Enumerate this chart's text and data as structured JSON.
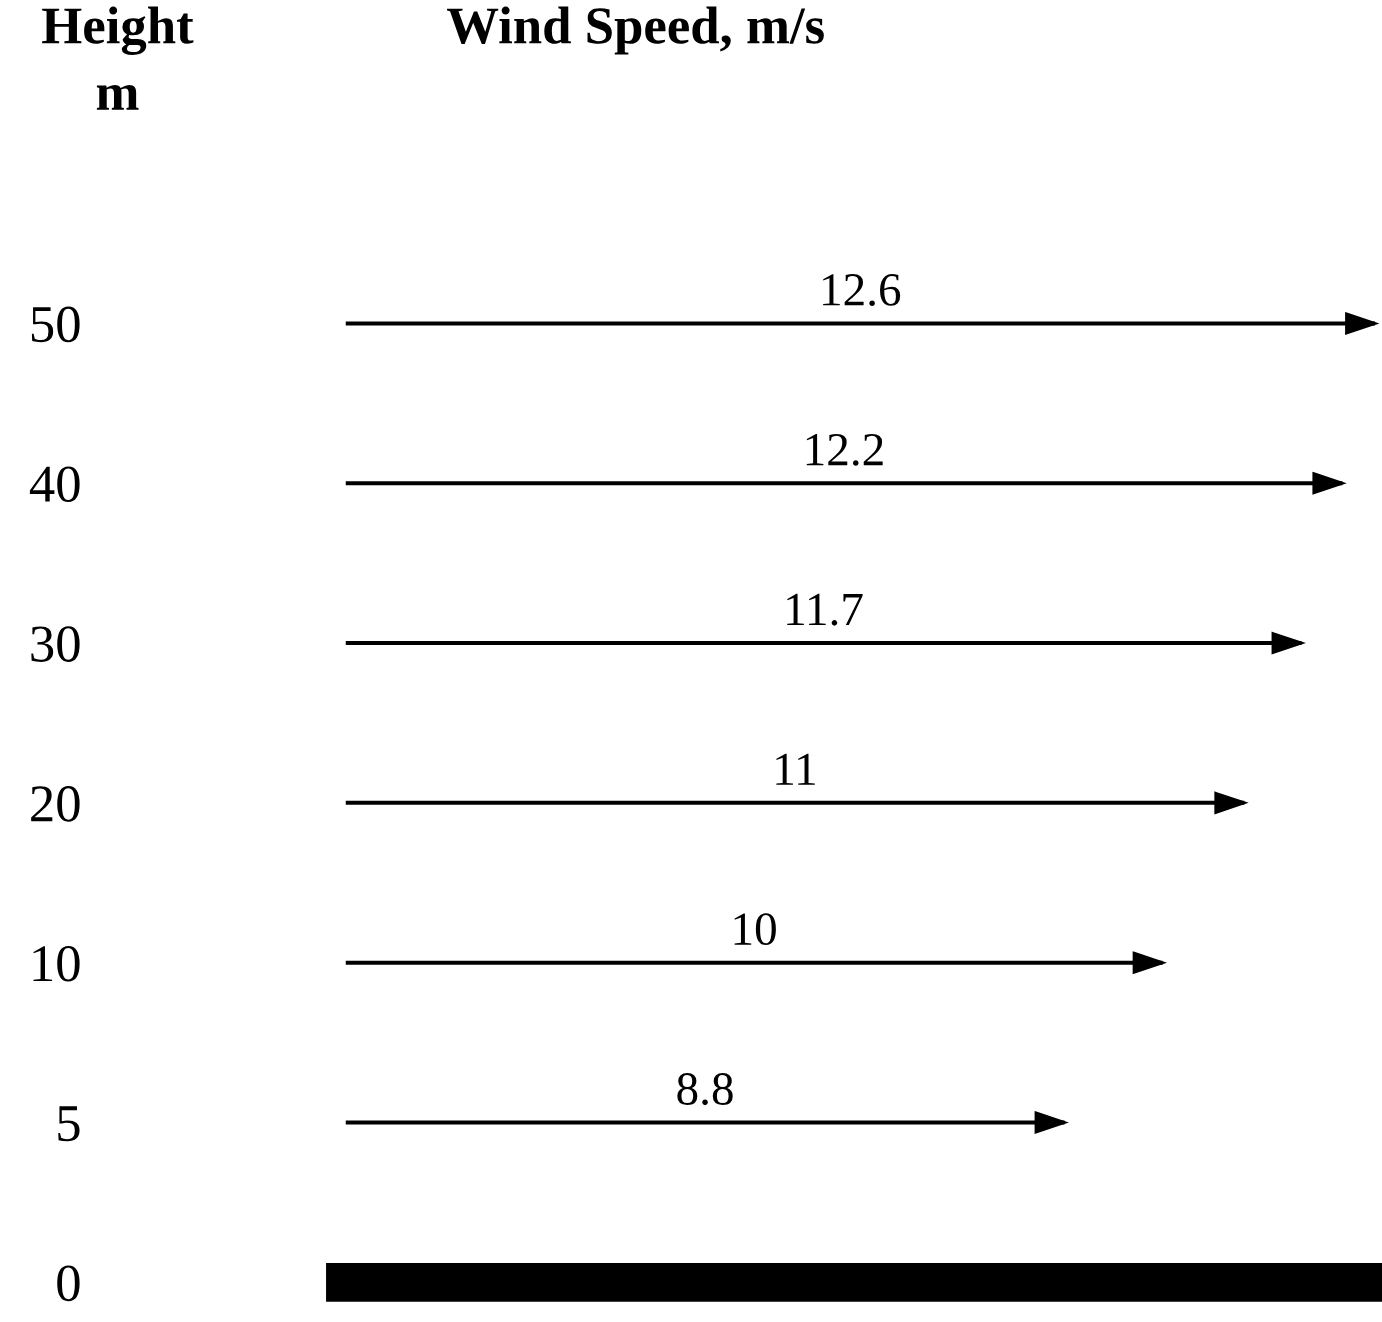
{
  "chart_data": {
    "type": "bar",
    "orientation": "horizontal",
    "title": "Wind Speed, m/s",
    "ylabel": "Height\nm",
    "categories": [
      "50",
      "40",
      "30",
      "20",
      "10",
      "5",
      "0"
    ],
    "values": [
      12.6,
      12.2,
      11.7,
      11,
      10,
      8.8,
      null
    ],
    "color": "#000000",
    "data_labels": true,
    "xlim": [
      0,
      12.6
    ],
    "tick_labels": "y",
    "grid": false,
    "legend": false
  }
}
